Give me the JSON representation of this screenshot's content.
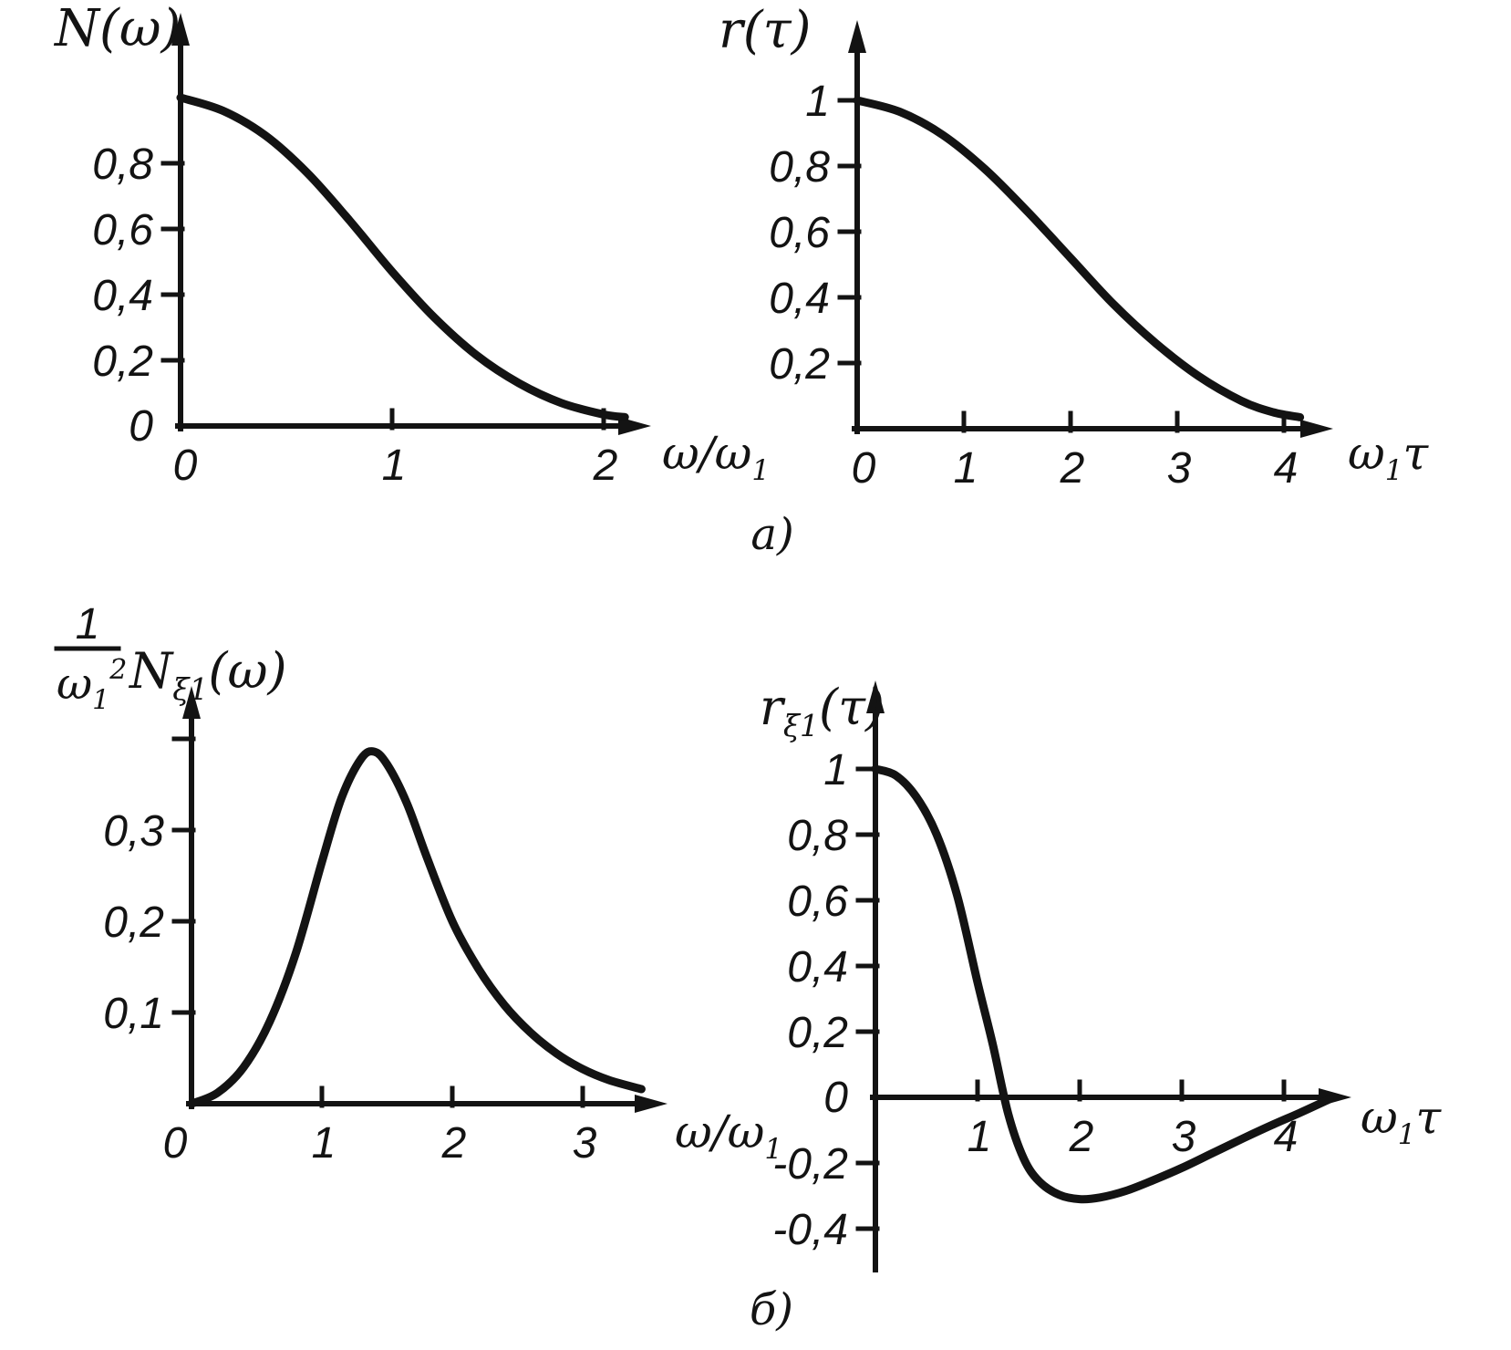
{
  "figure": {
    "background": "#ffffff",
    "ink_color": "#131313",
    "section_labels": {
      "a": "a)",
      "b": "б)"
    }
  },
  "chart_data": [
    {
      "id": "n-omega-spectrum",
      "type": "line",
      "title": "",
      "ylabel": "N(ω)",
      "xlabel": "ω/ω₁",
      "ylabel_runs": [
        {
          "t": "N(ω)"
        }
      ],
      "xlabel_runs": [
        {
          "t": "ω/ω"
        },
        {
          "t": "1",
          "sub": true
        }
      ],
      "xlim": [
        0,
        2.2
      ],
      "ylim": [
        0,
        1.25
      ],
      "grid": false,
      "legend": null,
      "x_ticks": [
        {
          "v": 0,
          "label": "0"
        },
        {
          "v": 1,
          "label": "1"
        },
        {
          "v": 2,
          "label": "2"
        }
      ],
      "y_ticks": [
        {
          "v": 0,
          "label": "0"
        },
        {
          "v": 0.2,
          "label": "0,2"
        },
        {
          "v": 0.4,
          "label": "0,4"
        },
        {
          "v": 0.6,
          "label": "0,6"
        },
        {
          "v": 0.8,
          "label": "0,8"
        }
      ],
      "points": [
        [
          0,
          1.0
        ],
        [
          0.2,
          0.96
        ],
        [
          0.4,
          0.885
        ],
        [
          0.6,
          0.77
        ],
        [
          0.8,
          0.625
        ],
        [
          1.0,
          0.47
        ],
        [
          1.2,
          0.33
        ],
        [
          1.4,
          0.215
        ],
        [
          1.6,
          0.13
        ],
        [
          1.8,
          0.07
        ],
        [
          2.0,
          0.035
        ],
        [
          2.1,
          0.027
        ]
      ]
    },
    {
      "id": "r-tau-correlation",
      "type": "line",
      "title": "",
      "ylabel": "r(τ)",
      "xlabel": "ω₁τ",
      "ylabel_runs": [
        {
          "t": "r(τ)"
        }
      ],
      "xlabel_runs": [
        {
          "t": "ω"
        },
        {
          "t": "1",
          "sub": true
        },
        {
          "t": "τ"
        }
      ],
      "xlim": [
        0,
        4.4
      ],
      "ylim": [
        0,
        1.25
      ],
      "grid": false,
      "legend": null,
      "x_ticks": [
        {
          "v": 0,
          "label": "0"
        },
        {
          "v": 1,
          "label": "1"
        },
        {
          "v": 2,
          "label": "2"
        },
        {
          "v": 3,
          "label": "3"
        },
        {
          "v": 4,
          "label": "4"
        }
      ],
      "y_ticks": [
        {
          "v": 0.2,
          "label": "0,2"
        },
        {
          "v": 0.4,
          "label": "0,4"
        },
        {
          "v": 0.6,
          "label": "0,6"
        },
        {
          "v": 0.8,
          "label": "0,8"
        },
        {
          "v": 1,
          "label": "1"
        }
      ],
      "points": [
        [
          0,
          1.0
        ],
        [
          0.4,
          0.965
        ],
        [
          0.8,
          0.895
        ],
        [
          1.2,
          0.79
        ],
        [
          1.6,
          0.66
        ],
        [
          2.0,
          0.52
        ],
        [
          2.4,
          0.38
        ],
        [
          2.8,
          0.26
        ],
        [
          3.2,
          0.16
        ],
        [
          3.6,
          0.085
        ],
        [
          3.9,
          0.05
        ],
        [
          4.15,
          0.035
        ]
      ]
    },
    {
      "id": "n-xi1-spectrum",
      "type": "line",
      "title": "",
      "ylabel": "(1/ω₁²)·N_ξ1(ω)",
      "xlabel": "ω/ω₁",
      "ylabel_fraction": {
        "num": [
          {
            "t": "1"
          }
        ],
        "den": [
          {
            "t": "ω"
          },
          {
            "t": "1",
            "sub": true
          },
          {
            "t": "2",
            "sup": true
          }
        ]
      },
      "ylabel_runs": [
        {
          "t": "N"
        },
        {
          "t": "ξ1",
          "sub": true
        },
        {
          "t": "(ω)"
        }
      ],
      "xlabel_runs": [
        {
          "t": "ω/ω"
        },
        {
          "t": "1",
          "sub": true
        }
      ],
      "xlim": [
        0,
        3.6
      ],
      "ylim": [
        0,
        0.45
      ],
      "grid": false,
      "legend": null,
      "x_ticks": [
        {
          "v": 0,
          "label": "0"
        },
        {
          "v": 1,
          "label": "1"
        },
        {
          "v": 2,
          "label": "2"
        },
        {
          "v": 3,
          "label": "3"
        }
      ],
      "y_ticks": [
        {
          "v": 0.1,
          "label": "0,1"
        },
        {
          "v": 0.2,
          "label": "0,2"
        },
        {
          "v": 0.3,
          "label": "0,3"
        },
        {
          "v": 0.4,
          "label": null
        }
      ],
      "points": [
        [
          0,
          0
        ],
        [
          0.2,
          0.012
        ],
        [
          0.4,
          0.04
        ],
        [
          0.6,
          0.09
        ],
        [
          0.8,
          0.165
        ],
        [
          1.0,
          0.265
        ],
        [
          1.15,
          0.335
        ],
        [
          1.3,
          0.378
        ],
        [
          1.4,
          0.386
        ],
        [
          1.5,
          0.372
        ],
        [
          1.65,
          0.33
        ],
        [
          1.8,
          0.272
        ],
        [
          2.0,
          0.2
        ],
        [
          2.2,
          0.148
        ],
        [
          2.4,
          0.108
        ],
        [
          2.6,
          0.078
        ],
        [
          2.8,
          0.055
        ],
        [
          3.0,
          0.038
        ],
        [
          3.2,
          0.026
        ],
        [
          3.45,
          0.016
        ]
      ]
    },
    {
      "id": "r-xi1-correlation",
      "type": "line",
      "title": "",
      "ylabel": "r_ξ1(τ)",
      "xlabel": "ω₁τ",
      "ylabel_runs": [
        {
          "t": "r"
        },
        {
          "t": "ξ1",
          "sub": true
        },
        {
          "t": "(τ)"
        }
      ],
      "xlabel_runs": [
        {
          "t": "ω"
        },
        {
          "t": "1",
          "sub": true
        },
        {
          "t": "τ"
        }
      ],
      "xlim": [
        0,
        4.6
      ],
      "ylim": [
        -0.45,
        1.25
      ],
      "grid": false,
      "legend": null,
      "x_ticks": [
        {
          "v": 1,
          "label": "1"
        },
        {
          "v": 2,
          "label": "2"
        },
        {
          "v": 3,
          "label": "3"
        },
        {
          "v": 4,
          "label": "4"
        }
      ],
      "y_ticks": [
        {
          "v": -0.4,
          "label": "-0,4"
        },
        {
          "v": -0.2,
          "label": "-0,2"
        },
        {
          "v": 0,
          "label": "0"
        },
        {
          "v": 0.2,
          "label": "0,2"
        },
        {
          "v": 0.4,
          "label": "0,4"
        },
        {
          "v": 0.6,
          "label": "0,6"
        },
        {
          "v": 0.8,
          "label": "0,8"
        },
        {
          "v": 1,
          "label": "1"
        }
      ],
      "points": [
        [
          0,
          1.0
        ],
        [
          0.2,
          0.98
        ],
        [
          0.4,
          0.915
        ],
        [
          0.6,
          0.8
        ],
        [
          0.8,
          0.615
        ],
        [
          1.0,
          0.35
        ],
        [
          1.15,
          0.16
        ],
        [
          1.3,
          -0.05
        ],
        [
          1.45,
          -0.185
        ],
        [
          1.6,
          -0.255
        ],
        [
          1.8,
          -0.297
        ],
        [
          2.0,
          -0.31
        ],
        [
          2.2,
          -0.305
        ],
        [
          2.45,
          -0.285
        ],
        [
          2.7,
          -0.255
        ],
        [
          3.0,
          -0.215
        ],
        [
          3.3,
          -0.17
        ],
        [
          3.6,
          -0.125
        ],
        [
          3.9,
          -0.082
        ],
        [
          4.15,
          -0.048
        ],
        [
          4.45,
          -0.005
        ]
      ]
    }
  ]
}
